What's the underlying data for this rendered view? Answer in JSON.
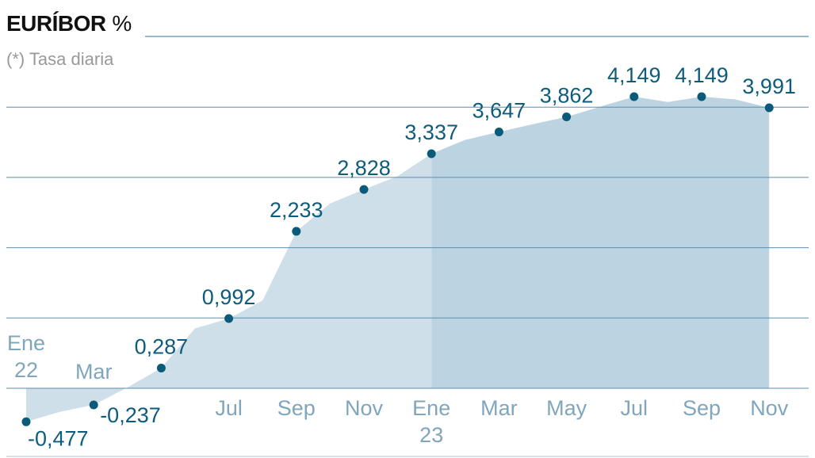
{
  "chart_data": {
    "type": "area",
    "title": "EURÍBOR",
    "title_unit": "%",
    "subtitle": "(*) Tasa diaria",
    "months": [
      "Ene 22",
      "Feb 22",
      "Mar 22",
      "Abr 22",
      "May 22",
      "Jun 22",
      "Jul 22",
      "Ago 22",
      "Sep 22",
      "Oct 22",
      "Nov 22",
      "Dic 22",
      "Ene 23",
      "Feb 23",
      "Mar 23",
      "Abr 23",
      "May 23",
      "Jun 23",
      "Jul 23",
      "Ago 23",
      "Sep 23",
      "Oct 23",
      "Nov 23"
    ],
    "values": [
      -0.477,
      -0.335,
      -0.237,
      0.013,
      0.287,
      0.852,
      0.992,
      1.249,
      2.233,
      2.629,
      2.828,
      3.018,
      3.337,
      3.534,
      3.647,
      3.757,
      3.862,
      4.007,
      4.149,
      4.073,
      4.149,
      4.11,
      3.991
    ],
    "labeled_points": [
      {
        "month": "Ene 22",
        "value": -0.477,
        "label": "-0,477"
      },
      {
        "month": "Mar 22",
        "value": -0.237,
        "label": "-0,237"
      },
      {
        "month": "May 22",
        "value": 0.287,
        "label": "0,287"
      },
      {
        "month": "Jul 22",
        "value": 0.992,
        "label": "0,992"
      },
      {
        "month": "Sep 22",
        "value": 2.233,
        "label": "2,233"
      },
      {
        "month": "Nov 22",
        "value": 2.828,
        "label": "2,828"
      },
      {
        "month": "Ene 23",
        "value": 3.337,
        "label": "3,337"
      },
      {
        "month": "Mar 23",
        "value": 3.647,
        "label": "3,647"
      },
      {
        "month": "May 23",
        "value": 3.862,
        "label": "3,862"
      },
      {
        "month": "Jul 23",
        "value": 4.149,
        "label": "4,149"
      },
      {
        "month": "Sep 23",
        "value": 4.149,
        "label": "4,149"
      },
      {
        "month": "Nov 23",
        "value": 3.991,
        "label": "3,991"
      }
    ],
    "x_tick_labels": [
      {
        "month": "Ene 22",
        "lines": [
          "Ene",
          "22"
        ]
      },
      {
        "month": "Mar 22",
        "lines": [
          "Mar"
        ]
      },
      {
        "month": "Jul 22",
        "lines": [
          "Jul"
        ]
      },
      {
        "month": "Sep 22",
        "lines": [
          "Sep"
        ]
      },
      {
        "month": "Nov 22",
        "lines": [
          "Nov"
        ]
      },
      {
        "month": "Ene 23",
        "lines": [
          "Ene",
          "23"
        ]
      },
      {
        "month": "Mar 23",
        "lines": [
          "Mar"
        ]
      },
      {
        "month": "May 23",
        "lines": [
          "May"
        ]
      },
      {
        "month": "Jul 23",
        "lines": [
          "Jul"
        ]
      },
      {
        "month": "Sep 23",
        "lines": [
          "Sep"
        ]
      },
      {
        "month": "Nov 23",
        "lines": [
          "Nov"
        ]
      }
    ],
    "ylim": [
      -0.6,
      4.5
    ],
    "gridlines": [
      0,
      1,
      2,
      3,
      4
    ],
    "grid": true,
    "highlight_from": "Ene 23",
    "colors": {
      "fill": "#cfdfea",
      "fill_highlight": "#bcd3e2",
      "point": "#0b5a7a",
      "label": "#0d5c7c",
      "axis_label": "#7fa6bd",
      "grid": "#5b8fae"
    }
  }
}
